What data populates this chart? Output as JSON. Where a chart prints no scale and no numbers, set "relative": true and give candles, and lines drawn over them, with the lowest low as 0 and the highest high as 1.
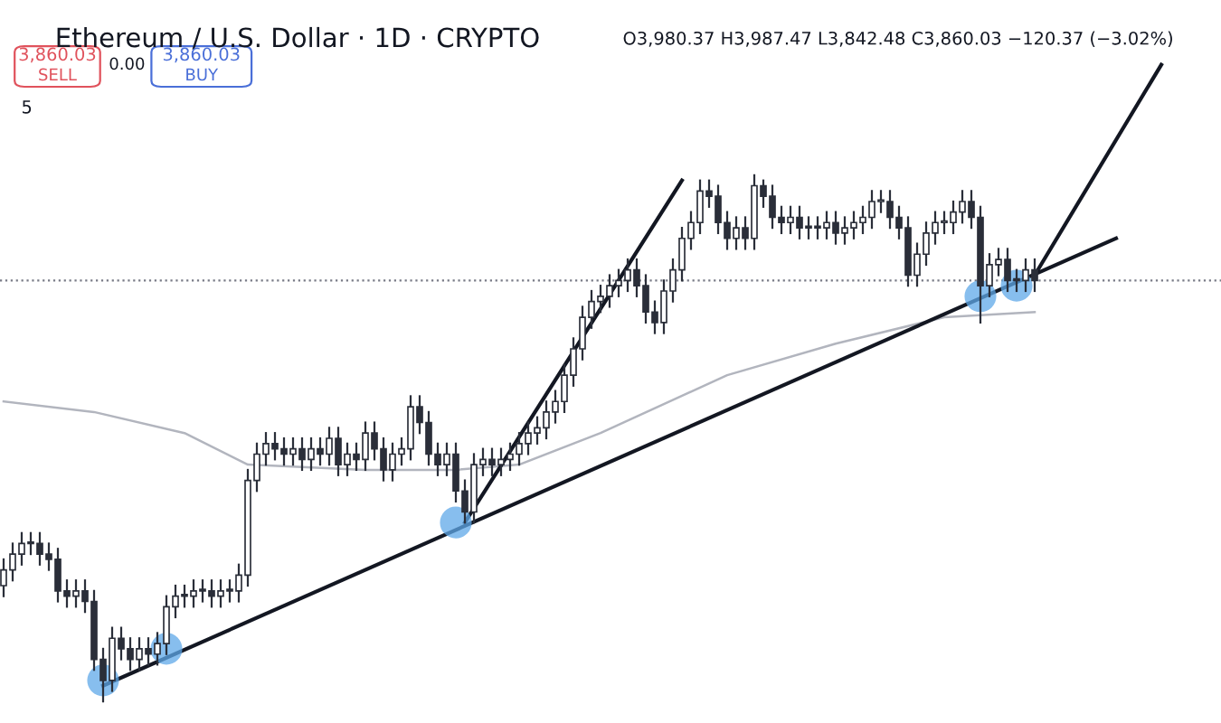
{
  "chart_data": {
    "type": "candlestick",
    "title": "Ethereum / U.S. Dollar · 1D · CRYPTO",
    "subtitle": "O3,980.37 H3,987.47 L3,842.48 C3,860.03 −120.37 (−3.02%)",
    "annotations": [
      "3,860.03",
      "SELL",
      "0.00",
      "3,860.03",
      "BUY",
      "5"
    ],
    "relative": true,
    "color": "#2a2e39",
    "categories": [
      null,
      null,
      null,
      null,
      null,
      null,
      null,
      null,
      null,
      null,
      null,
      null,
      null,
      null,
      null,
      null,
      null,
      null,
      null,
      null,
      null,
      null,
      null,
      null,
      null,
      null,
      null,
      null,
      null,
      null,
      null,
      null,
      null,
      null,
      null,
      null,
      null,
      null,
      null,
      null,
      null,
      null,
      null,
      null,
      null,
      null,
      null,
      null,
      null,
      null,
      null,
      null,
      null,
      null,
      null,
      null,
      null,
      null,
      null,
      null,
      null,
      null,
      null,
      null,
      null,
      null,
      null,
      null,
      null,
      null,
      null,
      null,
      null,
      null,
      null,
      null,
      null,
      null,
      null,
      null,
      null,
      null,
      null,
      null,
      null,
      null,
      null,
      null,
      null,
      null,
      null,
      null,
      null,
      null,
      null,
      null,
      null,
      null,
      null,
      null,
      null,
      null,
      null,
      null,
      null,
      null,
      null,
      null,
      null,
      null,
      null,
      null,
      null,
      null,
      null,
      null,
      null,
      null,
      null,
      null,
      null,
      null,
      null,
      null,
      null,
      null,
      null,
      null,
      null,
      null,
      null,
      null,
      null,
      null,
      null
    ],
    "ohlc": [
      [
        0.22,
        0.27,
        0.2,
        0.25
      ],
      [
        0.25,
        0.3,
        0.23,
        0.28
      ],
      [
        0.28,
        0.32,
        0.26,
        0.3
      ],
      [
        0.3,
        0.32,
        0.28,
        0.3
      ],
      [
        0.3,
        0.32,
        0.26,
        0.28
      ],
      [
        0.28,
        0.3,
        0.25,
        0.27
      ],
      [
        0.27,
        0.29,
        0.19,
        0.21
      ],
      [
        0.21,
        0.23,
        0.18,
        0.2
      ],
      [
        0.2,
        0.23,
        0.18,
        0.21
      ],
      [
        0.21,
        0.23,
        0.17,
        0.19
      ],
      [
        0.19,
        0.21,
        0.06,
        0.08
      ],
      [
        0.08,
        0.1,
        0.0,
        0.04
      ],
      [
        0.04,
        0.14,
        0.02,
        0.12
      ],
      [
        0.12,
        0.14,
        0.08,
        0.1
      ],
      [
        0.1,
        0.12,
        0.06,
        0.08
      ],
      [
        0.08,
        0.12,
        0.06,
        0.1
      ],
      [
        0.1,
        0.12,
        0.07,
        0.09
      ],
      [
        0.09,
        0.13,
        0.07,
        0.11
      ],
      [
        0.11,
        0.2,
        0.09,
        0.18
      ],
      [
        0.18,
        0.22,
        0.16,
        0.2
      ],
      [
        0.2,
        0.22,
        0.18,
        0.2
      ],
      [
        0.2,
        0.23,
        0.18,
        0.21
      ],
      [
        0.21,
        0.23,
        0.19,
        0.21
      ],
      [
        0.21,
        0.23,
        0.18,
        0.2
      ],
      [
        0.2,
        0.23,
        0.18,
        0.21
      ],
      [
        0.21,
        0.23,
        0.19,
        0.21
      ],
      [
        0.21,
        0.26,
        0.19,
        0.24
      ],
      [
        0.24,
        0.44,
        0.22,
        0.42
      ],
      [
        0.42,
        0.49,
        0.4,
        0.47
      ],
      [
        0.47,
        0.51,
        0.45,
        0.49
      ],
      [
        0.49,
        0.51,
        0.46,
        0.48
      ],
      [
        0.48,
        0.5,
        0.45,
        0.47
      ],
      [
        0.47,
        0.5,
        0.45,
        0.48
      ],
      [
        0.48,
        0.5,
        0.44,
        0.46
      ],
      [
        0.46,
        0.5,
        0.44,
        0.48
      ],
      [
        0.48,
        0.5,
        0.45,
        0.47
      ],
      [
        0.47,
        0.52,
        0.45,
        0.5
      ],
      [
        0.5,
        0.52,
        0.43,
        0.45
      ],
      [
        0.45,
        0.49,
        0.43,
        0.47
      ],
      [
        0.47,
        0.49,
        0.44,
        0.46
      ],
      [
        0.46,
        0.53,
        0.44,
        0.51
      ],
      [
        0.51,
        0.53,
        0.46,
        0.48
      ],
      [
        0.48,
        0.5,
        0.42,
        0.44
      ],
      [
        0.44,
        0.49,
        0.42,
        0.47
      ],
      [
        0.47,
        0.5,
        0.45,
        0.48
      ],
      [
        0.48,
        0.58,
        0.46,
        0.56
      ],
      [
        0.56,
        0.58,
        0.51,
        0.53
      ],
      [
        0.53,
        0.55,
        0.45,
        0.47
      ],
      [
        0.47,
        0.49,
        0.43,
        0.45
      ],
      [
        0.45,
        0.49,
        0.43,
        0.47
      ],
      [
        0.47,
        0.49,
        0.38,
        0.4
      ],
      [
        0.4,
        0.42,
        0.34,
        0.36
      ],
      [
        0.36,
        0.47,
        0.34,
        0.45
      ],
      [
        0.45,
        0.48,
        0.43,
        0.46
      ],
      [
        0.46,
        0.48,
        0.43,
        0.45
      ],
      [
        0.45,
        0.48,
        0.43,
        0.46
      ],
      [
        0.46,
        0.49,
        0.44,
        0.47
      ],
      [
        0.47,
        0.51,
        0.45,
        0.49
      ],
      [
        0.49,
        0.53,
        0.47,
        0.51
      ],
      [
        0.51,
        0.54,
        0.49,
        0.52
      ],
      [
        0.52,
        0.57,
        0.5,
        0.55
      ],
      [
        0.55,
        0.59,
        0.53,
        0.57
      ],
      [
        0.57,
        0.64,
        0.55,
        0.62
      ],
      [
        0.62,
        0.69,
        0.6,
        0.67
      ],
      [
        0.67,
        0.75,
        0.65,
        0.73
      ],
      [
        0.73,
        0.78,
        0.71,
        0.76
      ],
      [
        0.76,
        0.79,
        0.74,
        0.77
      ],
      [
        0.77,
        0.81,
        0.75,
        0.79
      ],
      [
        0.79,
        0.82,
        0.77,
        0.8
      ],
      [
        0.8,
        0.84,
        0.78,
        0.82
      ],
      [
        0.82,
        0.84,
        0.77,
        0.79
      ],
      [
        0.79,
        0.81,
        0.72,
        0.74
      ],
      [
        0.74,
        0.76,
        0.7,
        0.72
      ],
      [
        0.72,
        0.8,
        0.7,
        0.78
      ],
      [
        0.78,
        0.84,
        0.76,
        0.82
      ],
      [
        0.82,
        0.9,
        0.8,
        0.88
      ],
      [
        0.88,
        0.93,
        0.86,
        0.91
      ],
      [
        0.91,
        0.99,
        0.89,
        0.97
      ],
      [
        0.97,
        0.99,
        0.94,
        0.96
      ],
      [
        0.96,
        0.98,
        0.89,
        0.91
      ],
      [
        0.91,
        0.93,
        0.86,
        0.88
      ],
      [
        0.88,
        0.92,
        0.86,
        0.9
      ],
      [
        0.9,
        0.92,
        0.86,
        0.88
      ],
      [
        0.88,
        1.0,
        0.86,
        0.98
      ],
      [
        0.98,
        0.99,
        0.94,
        0.96
      ],
      [
        0.96,
        0.98,
        0.9,
        0.92
      ],
      [
        0.92,
        0.94,
        0.89,
        0.91
      ],
      [
        0.91,
        0.94,
        0.89,
        0.92
      ],
      [
        0.92,
        0.94,
        0.88,
        0.9
      ],
      [
        0.9,
        0.92,
        0.88,
        0.9
      ],
      [
        0.9,
        0.92,
        0.88,
        0.9
      ],
      [
        0.9,
        0.93,
        0.88,
        0.91
      ],
      [
        0.91,
        0.93,
        0.87,
        0.89
      ],
      [
        0.89,
        0.92,
        0.87,
        0.9
      ],
      [
        0.9,
        0.93,
        0.88,
        0.91
      ],
      [
        0.91,
        0.94,
        0.89,
        0.92
      ],
      [
        0.92,
        0.97,
        0.9,
        0.95
      ],
      [
        0.95,
        0.97,
        0.93,
        0.95
      ],
      [
        0.95,
        0.97,
        0.9,
        0.92
      ],
      [
        0.92,
        0.94,
        0.88,
        0.9
      ],
      [
        0.9,
        0.92,
        0.79,
        0.81
      ],
      [
        0.81,
        0.87,
        0.79,
        0.85
      ],
      [
        0.85,
        0.91,
        0.83,
        0.89
      ],
      [
        0.89,
        0.93,
        0.87,
        0.91
      ],
      [
        0.91,
        0.93,
        0.89,
        0.91
      ],
      [
        0.91,
        0.95,
        0.89,
        0.93
      ],
      [
        0.93,
        0.97,
        0.91,
        0.95
      ],
      [
        0.95,
        0.97,
        0.9,
        0.92
      ],
      [
        0.92,
        0.94,
        0.72,
        0.79
      ],
      [
        0.79,
        0.85,
        0.77,
        0.83
      ],
      [
        0.83,
        0.86,
        0.81,
        0.84
      ],
      [
        0.84,
        0.86,
        0.78,
        0.8
      ],
      [
        0.8,
        0.82,
        0.78,
        0.8
      ],
      [
        0.8,
        0.84,
        0.78,
        0.82
      ],
      [
        0.82,
        0.84,
        0.78,
        0.8
      ],
      null,
      null,
      null,
      null,
      null,
      null,
      null,
      null,
      null,
      null,
      null,
      null,
      null,
      null,
      null,
      null,
      null,
      null,
      null,
      null
    ],
    "series": [
      {
        "type": "line",
        "color": "#b2b5be",
        "values": [
          0.57,
          null,
          null,
          null,
          null,
          null,
          null,
          null,
          null,
          null,
          0.55,
          null,
          null,
          null,
          null,
          null,
          null,
          null,
          null,
          null,
          0.51,
          null,
          null,
          null,
          null,
          null,
          null,
          0.45,
          null,
          null,
          null,
          null,
          null,
          null,
          null,
          null,
          null,
          null,
          null,
          null,
          0.44,
          null,
          null,
          null,
          null,
          null,
          null,
          null,
          null,
          null,
          0.44,
          null,
          null,
          null,
          null,
          null,
          null,
          0.45,
          null,
          null,
          null,
          null,
          null,
          null,
          null,
          null,
          0.51,
          null,
          null,
          null,
          null,
          null,
          null,
          null,
          null,
          null,
          null,
          null,
          null,
          null,
          0.62,
          null,
          null,
          null,
          null,
          null,
          null,
          null,
          null,
          null,
          null,
          null,
          0.68,
          null,
          null,
          null,
          null,
          null,
          null,
          null,
          null,
          null,
          null,
          null,
          0.73,
          null,
          null,
          null,
          null,
          null,
          null,
          null,
          null,
          null,
          0.74,
          null,
          null,
          null,
          null,
          null,
          null,
          null,
          null,
          null,
          null,
          null,
          null,
          null,
          null,
          null,
          null,
          null,
          null,
          null,
          null
        ]
      },
      {
        "type": "line",
        "color": "#131722",
        "values": [
          null,
          null,
          null,
          null,
          null,
          null,
          null,
          null,
          null,
          null,
          null,
          0.03,
          null,
          null,
          null,
          null,
          null,
          null,
          null,
          null,
          null,
          null,
          null,
          null,
          null,
          null,
          null,
          null,
          null,
          null,
          null,
          null,
          null,
          null,
          null,
          null,
          null,
          null,
          null,
          null,
          null,
          null,
          null,
          null,
          null,
          null,
          null,
          null,
          null,
          null,
          null,
          null,
          null,
          null,
          null,
          null,
          null,
          null,
          null,
          null,
          null,
          null,
          null,
          null,
          null,
          null,
          null,
          null,
          null,
          null,
          null,
          null,
          null,
          null,
          null,
          null,
          null,
          null,
          null,
          null,
          null,
          null,
          null,
          null,
          null,
          null,
          null,
          null,
          null,
          null,
          null,
          null,
          null,
          null,
          null,
          null,
          null,
          null,
          null,
          null,
          null,
          null,
          null,
          null,
          null,
          null,
          null,
          null,
          null,
          null,
          null,
          null,
          null,
          null,
          null,
          null,
          null,
          null,
          null,
          null,
          null,
          null,
          null,
          0.88,
          null,
          null,
          null,
          null,
          null,
          null,
          null,
          null,
          null,
          null,
          null
        ]
      },
      {
        "type": "line",
        "color": "#131722",
        "values": [
          null,
          null,
          null,
          null,
          null,
          null,
          null,
          null,
          null,
          null,
          null,
          null,
          null,
          null,
          null,
          null,
          null,
          null,
          null,
          null,
          null,
          null,
          null,
          null,
          null,
          null,
          null,
          null,
          null,
          null,
          null,
          null,
          null,
          null,
          null,
          null,
          null,
          null,
          null,
          null,
          null,
          null,
          null,
          null,
          null,
          null,
          null,
          null,
          null,
          null,
          null,
          0.34,
          null,
          null,
          null,
          null,
          null,
          null,
          null,
          null,
          null,
          null,
          null,
          null,
          null,
          null,
          null,
          null,
          null,
          null,
          null,
          null,
          null,
          null,
          null,
          0.99,
          null,
          null,
          null,
          null,
          null,
          null,
          null,
          null,
          null,
          null,
          null,
          null,
          null,
          null,
          null,
          null,
          null,
          null,
          null,
          null,
          null,
          null,
          null,
          null,
          null,
          null,
          null,
          null,
          null,
          null,
          null,
          null,
          null,
          null,
          null,
          null,
          null,
          null,
          null,
          null,
          null,
          null,
          null,
          null,
          null,
          null,
          null,
          null,
          null,
          null,
          null,
          null,
          null,
          null,
          null,
          null,
          null,
          null,
          null
        ]
      },
      {
        "type": "line",
        "color": "#131722",
        "values": [
          null,
          null,
          null,
          null,
          null,
          null,
          null,
          null,
          null,
          null,
          null,
          null,
          null,
          null,
          null,
          null,
          null,
          null,
          null,
          null,
          null,
          null,
          null,
          null,
          null,
          null,
          null,
          null,
          null,
          null,
          null,
          null,
          null,
          null,
          null,
          null,
          null,
          null,
          null,
          null,
          null,
          null,
          null,
          null,
          null,
          null,
          null,
          null,
          null,
          null,
          null,
          null,
          null,
          null,
          null,
          null,
          null,
          null,
          null,
          null,
          null,
          null,
          null,
          null,
          null,
          null,
          null,
          null,
          null,
          null,
          null,
          null,
          null,
          null,
          null,
          null,
          null,
          null,
          null,
          null,
          null,
          null,
          null,
          null,
          null,
          null,
          null,
          null,
          null,
          null,
          null,
          null,
          null,
          null,
          null,
          null,
          null,
          null,
          null,
          null,
          null,
          null,
          null,
          null,
          null,
          null,
          null,
          null,
          null,
          null,
          null,
          null,
          null,
          null,
          0.81,
          null,
          null,
          null,
          null,
          null,
          null,
          null,
          null,
          null,
          null,
          null,
          null,
          null,
          1.21,
          null,
          null,
          null,
          null,
          null,
          null
        ]
      },
      {
        "type": "scatter",
        "color": "#5fa8e8",
        "marker": "circle",
        "values": [
          null,
          null,
          null,
          null,
          null,
          null,
          null,
          null,
          null,
          null,
          null,
          0.04,
          null,
          null,
          null,
          null,
          null,
          null,
          0.1,
          null,
          null,
          null,
          null,
          null,
          null,
          null,
          null,
          null,
          null,
          null,
          null,
          null,
          null,
          null,
          null,
          null,
          null,
          null,
          null,
          null,
          null,
          null,
          null,
          null,
          null,
          null,
          null,
          null,
          null,
          null,
          0.34,
          null,
          null,
          null,
          null,
          null,
          null,
          null,
          null,
          null,
          null,
          null,
          null,
          null,
          null,
          null,
          null,
          null,
          null,
          null,
          null,
          null,
          null,
          null,
          null,
          null,
          null,
          null,
          null,
          null,
          null,
          null,
          null,
          null,
          null,
          null,
          null,
          null,
          null,
          null,
          null,
          null,
          null,
          null,
          null,
          null,
          null,
          null,
          null,
          null,
          null,
          null,
          null,
          null,
          null,
          null,
          null,
          null,
          0.77,
          null,
          null,
          null,
          0.79,
          null,
          null,
          null,
          null,
          null,
          null,
          null,
          null,
          null,
          null,
          null,
          null,
          null,
          null,
          null,
          null,
          null,
          null,
          null,
          null,
          null,
          null
        ]
      }
    ],
    "ref_lines": [
      {
        "axis": "y",
        "value": 0.8,
        "color": "#787b86",
        "line_style": "dotted"
      }
    ]
  }
}
